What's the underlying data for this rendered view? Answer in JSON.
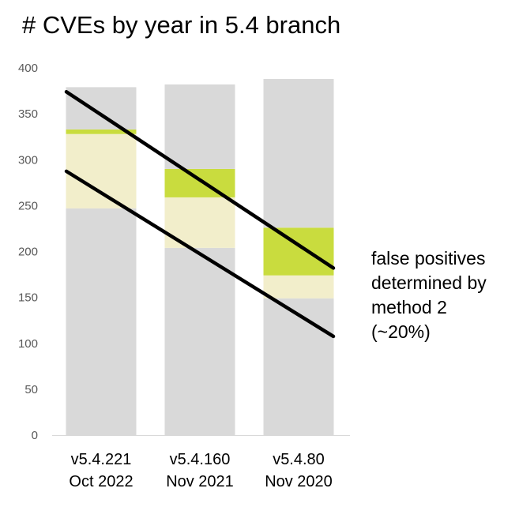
{
  "chart_data": {
    "type": "bar",
    "stacked": true,
    "title": "# CVEs by year in 5.4 branch",
    "categories": [
      {
        "version": "v5.4.221",
        "date": "Oct 2022"
      },
      {
        "version": "v5.4.160",
        "date": "Nov 2021"
      },
      {
        "version": "v5.4.80",
        "date": "Nov 2020"
      }
    ],
    "series": [
      {
        "color": "#d9d9d9",
        "values": [
          247,
          204,
          149
        ]
      },
      {
        "color": "#f2eecb",
        "values": [
          81,
          55,
          25
        ]
      },
      {
        "color": "#c9dc3e",
        "values": [
          5,
          31,
          52
        ]
      },
      {
        "color": "#d9d9d9",
        "values": [
          46,
          92,
          162
        ]
      }
    ],
    "totals": [
      379,
      382,
      388
    ],
    "ylim": [
      0,
      400
    ],
    "yticks": [
      0,
      50,
      100,
      150,
      200,
      250,
      300,
      350,
      400
    ],
    "grid": false,
    "lines": [
      {
        "color": "#000000",
        "start": {
          "category": 0,
          "y": 349
        },
        "end": {
          "category": 2,
          "y": 207
        }
      },
      {
        "color": "#000000",
        "start": {
          "category": 0,
          "y": 264
        },
        "end": {
          "category": 2,
          "y": 131
        }
      }
    ],
    "annotation": [
      "false positives",
      "determined by",
      "method 2",
      "(~20%)"
    ]
  }
}
